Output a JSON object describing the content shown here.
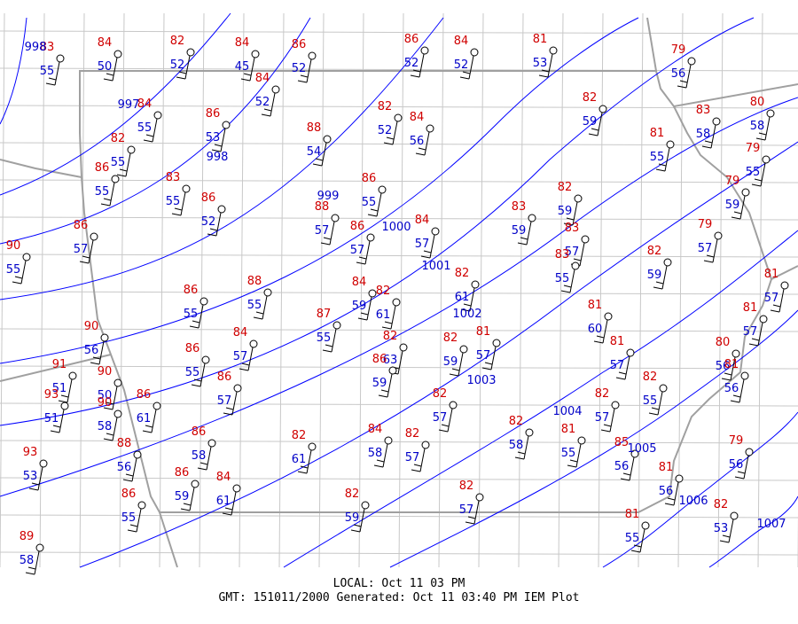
{
  "stations": [
    {
      "temp": 83,
      "dewpoint": 55
    },
    {
      "temp": 84,
      "dewpoint": 50
    },
    {
      "temp": 82,
      "dewpoint": 52
    },
    {
      "temp": 84,
      "dewpoint": 45
    },
    {
      "temp": 86,
      "dewpoint": 52
    },
    {
      "temp": 86,
      "dewpoint": 52
    },
    {
      "temp": 84,
      "dewpoint": 52
    },
    {
      "temp": 81,
      "dewpoint": 53
    },
    {
      "temp": 79,
      "dewpoint": 56
    },
    {
      "temp": 84,
      "dewpoint": 52
    },
    {
      "temp": 84,
      "dewpoint": 55
    },
    {
      "temp": 82,
      "dewpoint": 55
    },
    {
      "temp": 86,
      "dewpoint": 53
    },
    {
      "temp": 86,
      "dewpoint": 55
    },
    {
      "temp": 83,
      "dewpoint": 55
    },
    {
      "temp": 86,
      "dewpoint": 52
    },
    {
      "temp": 88,
      "dewpoint": 54
    },
    {
      "temp": 82,
      "dewpoint": 52
    },
    {
      "temp": 84,
      "dewpoint": 56
    },
    {
      "temp": 82,
      "dewpoint": 59
    },
    {
      "temp": 81,
      "dewpoint": 55
    },
    {
      "temp": 83,
      "dewpoint": 58
    },
    {
      "temp": 80,
      "dewpoint": 58
    },
    {
      "temp": 79,
      "dewpoint": 55
    },
    {
      "temp": 79,
      "dewpoint": 59
    },
    {
      "temp": 86,
      "dewpoint": 55
    },
    {
      "temp": 88,
      "dewpoint": 57
    },
    {
      "temp": 86,
      "dewpoint": 57
    },
    {
      "temp": 84,
      "dewpoint": 57
    },
    {
      "temp": 83,
      "dewpoint": 59
    },
    {
      "temp": 82,
      "dewpoint": 59
    },
    {
      "temp": 83,
      "dewpoint": 57
    },
    {
      "temp": 83,
      "dewpoint": 55
    },
    {
      "temp": 82,
      "dewpoint": 59
    },
    {
      "temp": 79,
      "dewpoint": 57
    },
    {
      "temp": 86,
      "dewpoint": 57
    },
    {
      "temp": 90,
      "dewpoint": 55
    },
    {
      "temp": 86,
      "dewpoint": 55
    },
    {
      "temp": 88,
      "dewpoint": 55
    },
    {
      "temp": 84,
      "dewpoint": 59
    },
    {
      "temp": 82,
      "dewpoint": 61
    },
    {
      "temp": 82,
      "dewpoint": 61
    },
    {
      "temp": 81,
      "dewpoint": 60
    },
    {
      "temp": 81,
      "dewpoint": 57
    },
    {
      "temp": 81,
      "dewpoint": 57
    },
    {
      "temp": 87,
      "dewpoint": 55
    },
    {
      "temp": 82,
      "dewpoint": 63
    },
    {
      "temp": 86,
      "dewpoint": 59
    },
    {
      "temp": 82,
      "dewpoint": 59
    },
    {
      "temp": 81,
      "dewpoint": 57
    },
    {
      "temp": 81,
      "dewpoint": 57
    },
    {
      "temp": 80,
      "dewpoint": 56
    },
    {
      "temp": 81,
      "dewpoint": 56
    },
    {
      "temp": 84,
      "dewpoint": 57
    },
    {
      "temp": 86,
      "dewpoint": 55
    },
    {
      "temp": 86,
      "dewpoint": 57
    },
    {
      "temp": 90,
      "dewpoint": 56
    },
    {
      "temp": 91,
      "dewpoint": 51
    },
    {
      "temp": 93,
      "dewpoint": 51
    },
    {
      "temp": 90,
      "dewpoint": 50
    },
    {
      "temp": 90,
      "dewpoint": 58
    },
    {
      "temp": 86,
      "dewpoint": 61
    },
    {
      "temp": 82,
      "dewpoint": 57
    },
    {
      "temp": 82,
      "dewpoint": 58
    },
    {
      "temp": 82,
      "dewpoint": 57
    },
    {
      "temp": 82,
      "dewpoint": 55
    },
    {
      "temp": 86,
      "dewpoint": 58
    },
    {
      "temp": 82,
      "dewpoint": 61
    },
    {
      "temp": 84,
      "dewpoint": 58
    },
    {
      "temp": 82,
      "dewpoint": 57
    },
    {
      "temp": 81,
      "dewpoint": 55
    },
    {
      "temp": 85,
      "dewpoint": 56
    },
    {
      "temp": 88,
      "dewpoint": 56
    },
    {
      "temp": 93,
      "dewpoint": 53
    },
    {
      "temp": 86,
      "dewpoint": 59
    },
    {
      "temp": 84,
      "dewpoint": 61
    },
    {
      "temp": 82,
      "dewpoint": 59
    },
    {
      "temp": 82,
      "dewpoint": 57
    },
    {
      "temp": 81,
      "dewpoint": 56
    },
    {
      "temp": 79,
      "dewpoint": 56
    },
    {
      "temp": 86,
      "dewpoint": 55
    },
    {
      "temp": 82,
      "dewpoint": 53
    },
    {
      "temp": 81,
      "dewpoint": 55
    },
    {
      "temp": 89,
      "dewpoint": 58
    }
  ],
  "isobars": [
    998,
    997,
    998,
    999,
    1000,
    1001,
    1002,
    1003,
    1004,
    1005,
    1006,
    1007
  ],
  "footer": {
    "local": "LOCAL: Oct 11 03 PM",
    "gmt": "GMT: 151011/2000 Generated: Oct 11 03:40 PM IEM Plot"
  }
}
